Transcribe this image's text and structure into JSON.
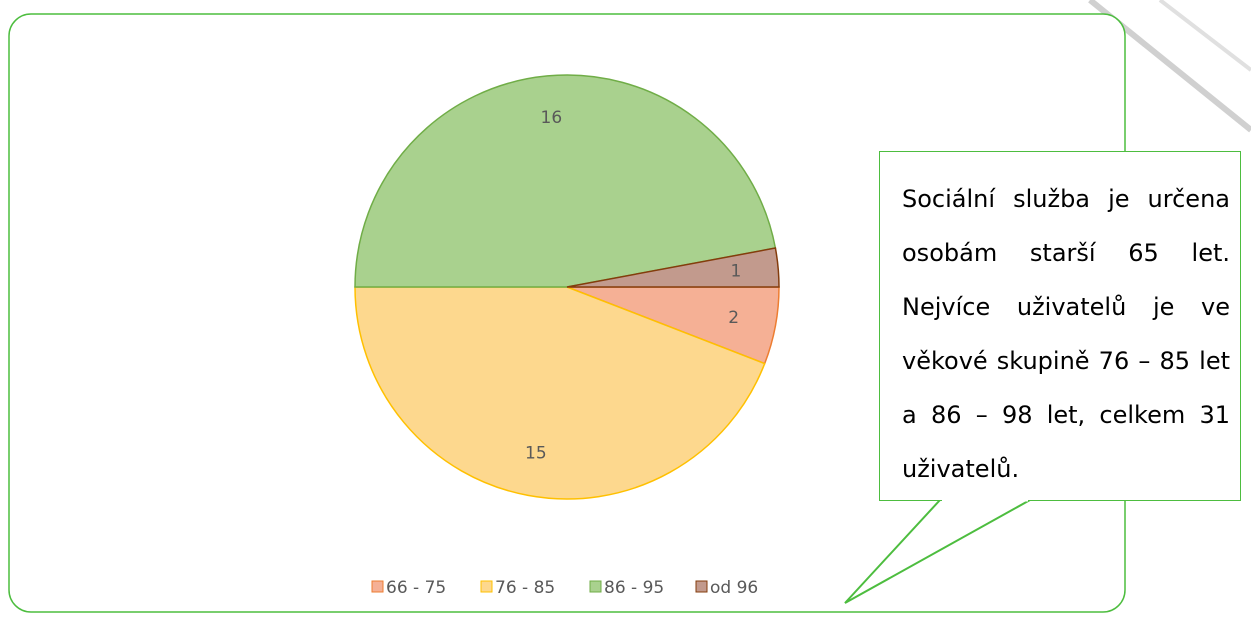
{
  "chart_data": {
    "type": "pie",
    "categories": [
      "66 - 75",
      "76 - 85",
      "86 - 95",
      "od 96"
    ],
    "values": [
      2,
      15,
      16,
      1
    ],
    "colors": [
      "#f5b095",
      "#fdd88e",
      "#a9d18e",
      "#c29a8d"
    ],
    "edge_colors": [
      "#ed7d31",
      "#ffc000",
      "#70ad47",
      "#843c0c"
    ],
    "legend": "bottom",
    "annotation": "Sociální služba je určena osobám starší 65 let. Nejvíce uživatelů je ve věkové skupině 76 – 85 let a 86 – 98 let, celkem 31 uživatelů."
  }
}
